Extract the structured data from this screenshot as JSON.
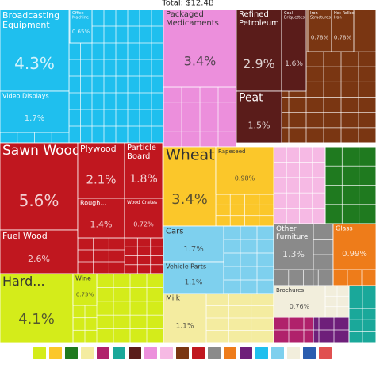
{
  "chart_data": {
    "type": "treemap",
    "title": "Total: $12.4B",
    "categories": [
      "Broadcasting Equipment",
      "Video Displays",
      "Office Machine",
      "Packaged Medicaments",
      "Refined Petroleum",
      "Coal Briquettes",
      "Iron Structures",
      "Hot-Rolled Iron",
      "Peat",
      "Sawn Wood",
      "Fuel Wood",
      "Plywood",
      "Particle Board",
      "Rough...",
      "Wood Crates",
      "Hard...",
      "Wine",
      "Wheat",
      "Rapeseed",
      "Cars",
      "Vehicle Parts",
      "Milk",
      "Other Furniture",
      "Glass",
      "Brochures"
    ],
    "values": [
      4.3,
      1.7,
      0.65,
      3.4,
      2.9,
      1.6,
      0.78,
      0.78,
      1.5,
      5.6,
      2.6,
      2.1,
      1.8,
      1.4,
      0.72,
      4.1,
      0.73,
      3.4,
      0.98,
      1.7,
      1.1,
      1.1,
      1.3,
      0.99,
      0.76
    ],
    "value_labels": [
      "4.3%",
      "1.7%",
      "0.65%",
      "3.4%",
      "2.9%",
      "1.6%",
      "0.78%",
      "0.78%",
      "1.5%",
      "5.6%",
      "2.6%",
      "2.1%",
      "1.8%",
      "1.4%",
      "0.72%",
      "4.1%",
      "0.73%",
      "3.4%",
      "0.98%",
      "1.7%",
      "1.1%",
      "1.1%",
      "1.3%",
      "0.99%",
      "0.76%"
    ],
    "colors": [
      "#1fbfee",
      "#1fbfee",
      "#1fbfee",
      "#ec8fdc",
      "#5a1c1a",
      "#5a1c1a",
      "#7a3612",
      "#7a3612",
      "#5a1c1a",
      "#c0171f",
      "#c0171f",
      "#c0171f",
      "#c0171f",
      "#c0171f",
      "#c0171f",
      "#d4ec1a",
      "#d4ec1a",
      "#fbc72a",
      "#fbc72a",
      "#7ed0ee",
      "#7ed0ee",
      "#f4eca0",
      "#8a8a8a",
      "#ee7c1a",
      "#f2eedc"
    ]
  }
}
